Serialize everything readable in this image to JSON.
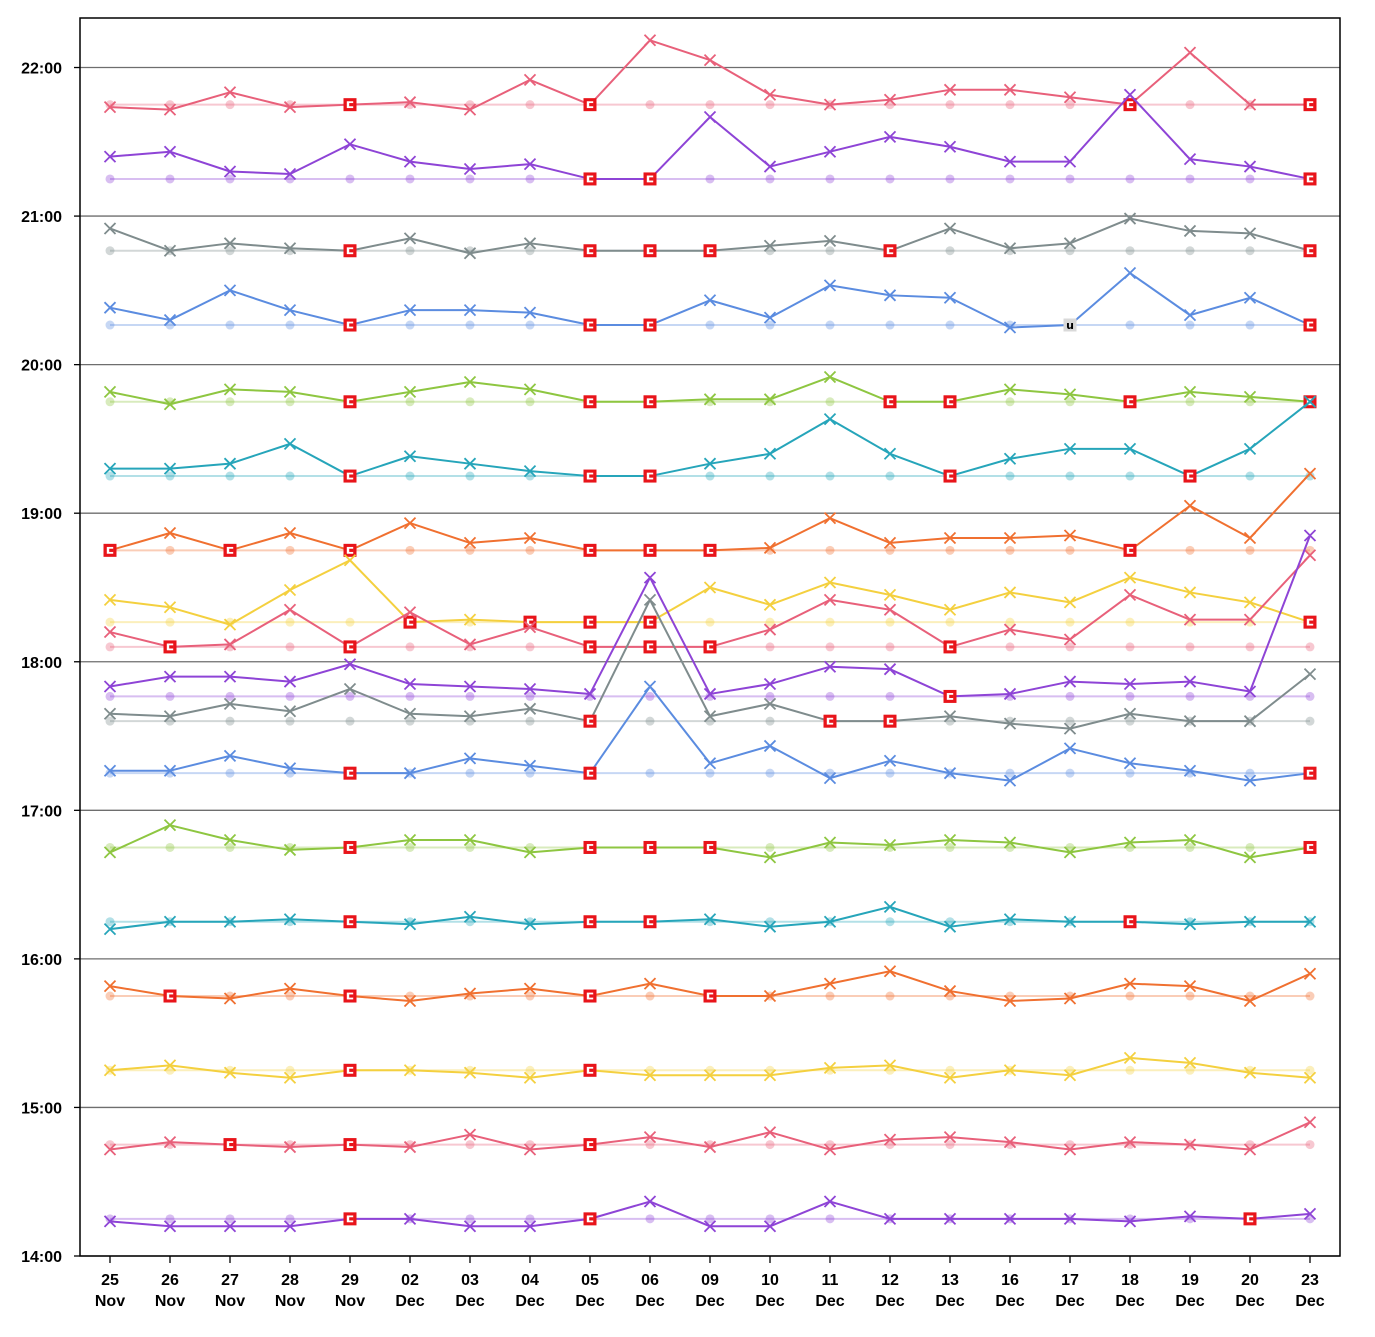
{
  "chart_data": {
    "type": "line",
    "categories": [
      {
        "day": "25",
        "month": "Nov"
      },
      {
        "day": "26",
        "month": "Nov"
      },
      {
        "day": "27",
        "month": "Nov"
      },
      {
        "day": "28",
        "month": "Nov"
      },
      {
        "day": "29",
        "month": "Nov"
      },
      {
        "day": "02",
        "month": "Dec"
      },
      {
        "day": "03",
        "month": "Dec"
      },
      {
        "day": "04",
        "month": "Dec"
      },
      {
        "day": "05",
        "month": "Dec"
      },
      {
        "day": "06",
        "month": "Dec"
      },
      {
        "day": "09",
        "month": "Dec"
      },
      {
        "day": "10",
        "month": "Dec"
      },
      {
        "day": "11",
        "month": "Dec"
      },
      {
        "day": "12",
        "month": "Dec"
      },
      {
        "day": "13",
        "month": "Dec"
      },
      {
        "day": "16",
        "month": "Dec"
      },
      {
        "day": "17",
        "month": "Dec"
      },
      {
        "day": "18",
        "month": "Dec"
      },
      {
        "day": "19",
        "month": "Dec"
      },
      {
        "day": "20",
        "month": "Dec"
      },
      {
        "day": "23",
        "month": "Dec"
      }
    ],
    "y_ticks": [
      "14:00",
      "15:00",
      "16:00",
      "17:00",
      "18:00",
      "19:00",
      "20:00",
      "21:00",
      "22:00"
    ],
    "ylim_minutes": [
      840,
      1340
    ],
    "grid": "horizontal",
    "badge_labels": {
      "cancelled": "C",
      "unknown": "u"
    },
    "series": [
      {
        "color": "#e8607a",
        "scheduled": "21:45",
        "values": [
          "21:44",
          "21:43",
          "21:50",
          "21:44",
          "C",
          "21:46",
          "21:43",
          "21:55",
          "C",
          "22:11",
          "22:03",
          "21:49",
          "21:45",
          "21:47",
          "21:51",
          "21:51",
          "21:48",
          "C",
          "22:06",
          "21:45",
          "C"
        ]
      },
      {
        "color": "#8e44d6",
        "scheduled": "21:15",
        "values": [
          "21:24",
          "21:26",
          "21:18",
          "21:17",
          "21:29",
          "21:22",
          "21:19",
          "21:21",
          "C",
          "C",
          "21:40",
          "21:20",
          "21:26",
          "21:32",
          "21:28",
          "21:22",
          "21:22",
          "21:49",
          "21:23",
          "21:20",
          "C"
        ]
      },
      {
        "color": "#7f8c8d",
        "scheduled": "20:46",
        "values": [
          "20:55",
          "20:46",
          "20:49",
          "20:47",
          "C",
          "20:51",
          "20:45",
          "20:49",
          "C",
          "C",
          "C",
          "20:48",
          "20:50",
          "C",
          "20:55",
          "20:47",
          "20:49",
          "20:59",
          "20:54",
          "20:53",
          "C"
        ]
      },
      {
        "color": "#5b8ce0",
        "scheduled": "20:16",
        "values": [
          "20:23",
          "20:18",
          "20:30",
          "20:22",
          "C",
          "20:22",
          "20:22",
          "20:21",
          "C",
          "C",
          "20:26",
          "20:19",
          "20:32",
          "20:28",
          "20:27",
          "20:15",
          "U",
          "20:37",
          "20:20",
          "20:27",
          "C"
        ]
      },
      {
        "color": "#8ec641",
        "scheduled": "19:45",
        "values": [
          "19:49",
          "19:44",
          "19:50",
          "19:49",
          "C",
          "19:49",
          "19:53",
          "19:50",
          "C",
          "C",
          "19:46",
          "19:46",
          "19:55",
          "C",
          "C",
          "19:50",
          "19:48",
          "C",
          "19:49",
          "19:47",
          "C"
        ]
      },
      {
        "color": "#26a5ba",
        "scheduled": "19:15",
        "values": [
          "19:18",
          "19:18",
          "19:20",
          "19:28",
          "C",
          "19:23",
          "19:20",
          "19:17",
          "C",
          "C",
          "19:20",
          "19:24",
          "19:38",
          "19:24",
          "C",
          "19:22",
          "19:26",
          "19:26",
          "C",
          "19:26",
          "19:45"
        ]
      },
      {
        "color": "#f07030",
        "scheduled": "18:45",
        "values": [
          "C",
          "18:52",
          "C",
          "18:52",
          "C",
          "18:56",
          "18:48",
          "18:50",
          "C",
          "C",
          "C",
          "18:46",
          "18:58",
          "18:48",
          "18:50",
          "18:50",
          "18:51",
          "C",
          "19:03",
          "18:50",
          "19:16"
        ]
      },
      {
        "color": "#f4d03f",
        "scheduled": "18:16",
        "values": [
          "18:25",
          "18:22",
          "18:15",
          "18:29",
          "18:41",
          "C",
          "18:17",
          "C",
          "C",
          "C",
          "18:30",
          "18:23",
          "18:32",
          "18:27",
          "18:21",
          "18:28",
          "18:24",
          "18:34",
          "18:28",
          "18:24",
          "C"
        ]
      },
      {
        "color": "#e8607a",
        "scheduled": "18:06",
        "values": [
          "18:12",
          "C",
          "18:07",
          "18:21",
          "C",
          "18:20",
          "18:07",
          "18:14",
          "C",
          "C",
          "C",
          "18:13",
          "18:25",
          "18:21",
          "C",
          "18:13",
          "18:09",
          "18:27",
          "18:17",
          "18:17",
          "18:43"
        ]
      },
      {
        "color": "#8e44d6",
        "scheduled": "17:46",
        "values": [
          "17:50",
          "17:54",
          "17:54",
          "17:52",
          "17:59",
          "17:51",
          "17:50",
          "17:49",
          "17:47",
          "18:34",
          "17:47",
          "17:51",
          "17:58",
          "17:57",
          "C",
          "17:47",
          "17:52",
          "17:51",
          "17:52",
          "17:48",
          "18:51"
        ]
      },
      {
        "color": "#7f8c8d",
        "scheduled": "17:36",
        "values": [
          "17:39",
          "17:38",
          "17:43",
          "17:40",
          "17:49",
          "17:39",
          "17:38",
          "17:41",
          "C",
          "18:25",
          "17:38",
          "17:43",
          "C",
          "C",
          "17:38",
          "17:35",
          "17:33",
          "17:39",
          "17:36",
          "17:36",
          "17:55"
        ]
      },
      {
        "color": "#5b8ce0",
        "scheduled": "17:15",
        "values": [
          "17:16",
          "17:16",
          "17:22",
          "17:17",
          "C",
          "17:15",
          "17:21",
          "17:18",
          "C",
          "17:50",
          "17:19",
          "17:26",
          "17:13",
          "17:20",
          "17:15",
          "17:12",
          "17:25",
          "17:19",
          "17:16",
          "17:12",
          "C"
        ]
      },
      {
        "color": "#8ec641",
        "scheduled": "16:45",
        "values": [
          "16:43",
          "16:54",
          "16:48",
          "16:44",
          "C",
          "16:48",
          "16:48",
          "16:43",
          "C",
          "C",
          "C",
          "16:41",
          "16:47",
          "16:46",
          "16:48",
          "16:47",
          "16:43",
          "16:47",
          "16:48",
          "16:41",
          "C"
        ]
      },
      {
        "color": "#26a5ba",
        "scheduled": "16:15",
        "values": [
          "16:12",
          "16:15",
          "16:15",
          "16:16",
          "C",
          "16:14",
          "16:17",
          "16:14",
          "C",
          "C",
          "16:16",
          "16:13",
          "16:15",
          "16:21",
          "16:13",
          "16:16",
          "16:15",
          "C",
          "16:14",
          "16:15",
          "16:15"
        ]
      },
      {
        "color": "#f07030",
        "scheduled": "15:45",
        "values": [
          "15:49",
          "C",
          "15:44",
          "15:48",
          "C",
          "15:43",
          "15:46",
          "15:48",
          "C",
          "15:50",
          "C",
          "15:45",
          "15:50",
          "15:55",
          "15:47",
          "15:43",
          "15:44",
          "15:50",
          "15:49",
          "15:43",
          "15:54"
        ]
      },
      {
        "color": "#f4d03f",
        "scheduled": "15:15",
        "values": [
          "15:15",
          "15:17",
          "15:14",
          "15:12",
          "C",
          "15:15",
          "15:14",
          "15:12",
          "C",
          "15:13",
          "15:13",
          "15:13",
          "15:16",
          "15:17",
          "15:12",
          "15:15",
          "15:13",
          "15:20",
          "15:18",
          "15:14",
          "15:12"
        ]
      },
      {
        "color": "#e8607a",
        "scheduled": "14:45",
        "values": [
          "14:43",
          "14:46",
          "C",
          "14:44",
          "C",
          "14:44",
          "14:49",
          "14:43",
          "C",
          "14:48",
          "14:44",
          "14:50",
          "14:43",
          "14:47",
          "14:48",
          "14:46",
          "14:43",
          "14:46",
          "14:45",
          "14:43",
          "14:54"
        ]
      },
      {
        "color": "#8e44d6",
        "scheduled": "14:15",
        "values": [
          "14:14",
          "14:12",
          "14:12",
          "14:12",
          "C",
          "14:15",
          "14:12",
          "14:12",
          "C",
          "14:22",
          "14:12",
          "14:12",
          "14:22",
          "14:15",
          "14:15",
          "14:15",
          "14:15",
          "14:14",
          "14:16",
          "C",
          "14:17"
        ]
      }
    ]
  }
}
